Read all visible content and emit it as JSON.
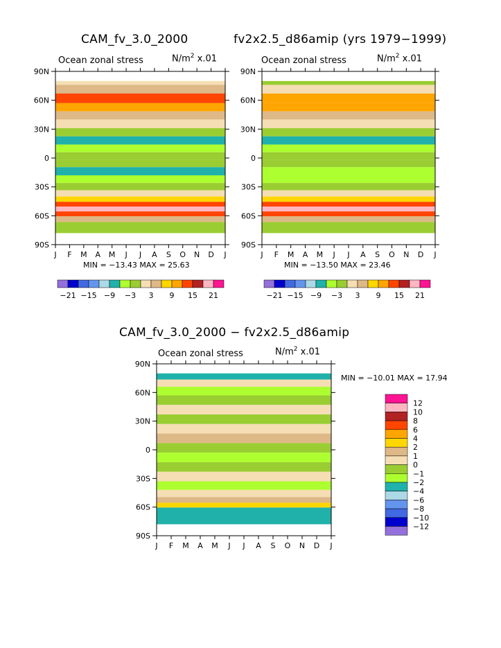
{
  "chart_data": [
    {
      "type": "heatmap",
      "title": "CAM_fv_3.0_2000",
      "subtitle_left": "Ocean zonal stress",
      "units": "N/m",
      "units_sup": "2",
      "units_scale": "x.01",
      "x_ticks": [
        "J",
        "F",
        "M",
        "A",
        "M",
        "J",
        "J",
        "A",
        "S",
        "O",
        "N",
        "D",
        "J"
      ],
      "y_ticks": [
        "90N",
        "60N",
        "30N",
        "0",
        "30S",
        "60S",
        "90S"
      ],
      "min_label": "MIN = −13.43",
      "max_label": "MAX =  25.63",
      "colorbar": {
        "labels": [
          "−21",
          "−15",
          "−9",
          "−3",
          "3",
          "9",
          "15",
          "21"
        ],
        "colors": [
          "#9370db",
          "#0000cd",
          "#4169e1",
          "#6495ed",
          "#add8e6",
          "#20b2aa",
          "#adff2f",
          "#9acd32",
          "#f5deb3",
          "#deb887",
          "#ffd700",
          "#ffa500",
          "#ff4500",
          "#b22222",
          "#ffb6c1",
          "#ff1493"
        ]
      },
      "latitude_bands": [
        {
          "lat": 80,
          "value": 2
        },
        {
          "lat": 72,
          "value": 5
        },
        {
          "lat": 62,
          "value": 12
        },
        {
          "lat": 52,
          "value": 9
        },
        {
          "lat": 45,
          "value": 4
        },
        {
          "lat": 35,
          "value": 1
        },
        {
          "lat": 27,
          "value": -2
        },
        {
          "lat": 18,
          "value": -9
        },
        {
          "lat": 10,
          "value": -4
        },
        {
          "lat": 2,
          "value": -1
        },
        {
          "lat": -5,
          "value": -3
        },
        {
          "lat": -14,
          "value": -7
        },
        {
          "lat": -22,
          "value": -4
        },
        {
          "lat": -30,
          "value": -1
        },
        {
          "lat": -37,
          "value": 2
        },
        {
          "lat": -43,
          "value": 8
        },
        {
          "lat": -48,
          "value": 14
        },
        {
          "lat": -53,
          "value": 20
        },
        {
          "lat": -58,
          "value": 14
        },
        {
          "lat": -63,
          "value": 4
        },
        {
          "lat": -70,
          "value": -2
        }
      ]
    },
    {
      "type": "heatmap",
      "title": "fv2x2.5_d86amip (yrs 1979−1999)",
      "subtitle_left": "Ocean zonal stress",
      "units": "N/m",
      "units_sup": "2",
      "units_scale": "x.01",
      "x_ticks": [
        "J",
        "F",
        "M",
        "A",
        "M",
        "J",
        "J",
        "A",
        "S",
        "O",
        "N",
        "D",
        "J"
      ],
      "y_ticks": [
        "90N",
        "60N",
        "30N",
        "0",
        "30S",
        "60S",
        "90S"
      ],
      "min_label": "MIN = −13.50",
      "max_label": "MAX =  23.46",
      "colorbar": {
        "labels": [
          "−21",
          "−15",
          "−9",
          "−3",
          "3",
          "9",
          "15",
          "21"
        ],
        "colors": [
          "#9370db",
          "#0000cd",
          "#4169e1",
          "#6495ed",
          "#add8e6",
          "#20b2aa",
          "#adff2f",
          "#9acd32",
          "#f5deb3",
          "#deb887",
          "#ffd700",
          "#ffa500",
          "#ff4500",
          "#b22222",
          "#ffb6c1",
          "#ff1493"
        ]
      },
      "latitude_bands": [
        {
          "lat": 80,
          "value": -1
        },
        {
          "lat": 72,
          "value": 2
        },
        {
          "lat": 62,
          "value": 9
        },
        {
          "lat": 52,
          "value": 10
        },
        {
          "lat": 45,
          "value": 4
        },
        {
          "lat": 35,
          "value": 1
        },
        {
          "lat": 27,
          "value": -2
        },
        {
          "lat": 18,
          "value": -8
        },
        {
          "lat": 10,
          "value": -4
        },
        {
          "lat": 2,
          "value": -1
        },
        {
          "lat": -5,
          "value": -3
        },
        {
          "lat": -14,
          "value": -6
        },
        {
          "lat": -22,
          "value": -4
        },
        {
          "lat": -30,
          "value": -1
        },
        {
          "lat": -37,
          "value": 2
        },
        {
          "lat": -43,
          "value": 8
        },
        {
          "lat": -48,
          "value": 14
        },
        {
          "lat": -53,
          "value": 19
        },
        {
          "lat": -58,
          "value": 13
        },
        {
          "lat": -63,
          "value": 3
        },
        {
          "lat": -70,
          "value": -2
        }
      ]
    },
    {
      "type": "heatmap",
      "title": "CAM_fv_3.0_2000 − fv2x2.5_d86amip",
      "subtitle_left": "Ocean zonal stress",
      "units": "N/m",
      "units_sup": "2",
      "units_scale": "x.01",
      "x_ticks": [
        "J",
        "F",
        "M",
        "A",
        "M",
        "J",
        "J",
        "A",
        "S",
        "O",
        "N",
        "D",
        "J"
      ],
      "y_ticks": [
        "90N",
        "60N",
        "30N",
        "0",
        "30S",
        "60S",
        "90S"
      ],
      "min_label": "MIN = −10.01",
      "max_label": "MAX =  17.94",
      "colorbar": {
        "labels": [
          "12",
          "10",
          "8",
          "6",
          "4",
          "2",
          "1",
          "0",
          "−1",
          "−2",
          "−4",
          "−6",
          "−8",
          "−10",
          "−12"
        ],
        "colors": [
          "#ff1493",
          "#ffb6c1",
          "#b22222",
          "#ff4500",
          "#ffa500",
          "#ffd700",
          "#deb887",
          "#f5deb3",
          "#9acd32",
          "#adff2f",
          "#20b2aa",
          "#add8e6",
          "#6495ed",
          "#4169e1",
          "#0000cd",
          "#9370db"
        ]
      },
      "latitude_bands": [
        {
          "lat": 77,
          "value": -4
        },
        {
          "lat": 70,
          "value": 0.5
        },
        {
          "lat": 62,
          "value": -1.5
        },
        {
          "lat": 52,
          "value": -0.5
        },
        {
          "lat": 42,
          "value": 0.5
        },
        {
          "lat": 32,
          "value": -0.5
        },
        {
          "lat": 22,
          "value": 0.5
        },
        {
          "lat": 12,
          "value": 1.5
        },
        {
          "lat": 2,
          "value": -0.5
        },
        {
          "lat": -8,
          "value": -1.5
        },
        {
          "lat": -18,
          "value": -0.5
        },
        {
          "lat": -28,
          "value": 0.5
        },
        {
          "lat": -38,
          "value": -1.5
        },
        {
          "lat": -46,
          "value": 0.5
        },
        {
          "lat": -53,
          "value": 1.5
        },
        {
          "lat": -58,
          "value": 3
        },
        {
          "lat": -63,
          "value": -2.5
        }
      ]
    }
  ]
}
